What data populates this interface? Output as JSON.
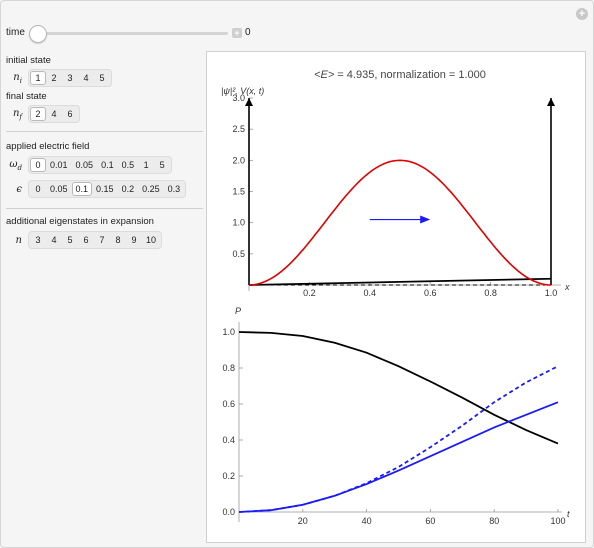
{
  "controls": {
    "time": {
      "label": "time",
      "value": "0"
    },
    "initial_state": {
      "title": "initial state",
      "symbol": "n",
      "subscript": "i",
      "options": [
        "1",
        "2",
        "3",
        "4",
        "5"
      ],
      "selected": "1"
    },
    "final_state": {
      "title": "final state",
      "symbol": "n",
      "subscript": "f",
      "options": [
        "2",
        "4",
        "6"
      ],
      "selected": "2"
    },
    "applied_field": {
      "title": "applied electric field",
      "omega": {
        "symbol": "ω",
        "subscript": "d",
        "options": [
          "0",
          "0.01",
          "0.05",
          "0.1",
          "0.5",
          "1",
          "5"
        ],
        "selected": "0"
      },
      "epsilon": {
        "symbol": "ϵ",
        "options": [
          "0",
          "0.05",
          "0.1",
          "0.15",
          "0.2",
          "0.25",
          "0.3"
        ],
        "selected": "0.1"
      }
    },
    "eigenstates": {
      "title": "additional eigenstates in expansion",
      "symbol": "n",
      "options": [
        "3",
        "4",
        "5",
        "6",
        "7",
        "8",
        "9",
        "10"
      ],
      "selected": ""
    }
  },
  "top_plot": {
    "header": "<E> = 4.935, normalization = 1.000",
    "header_parts": {
      "E": "<E>",
      "rest": " = 4.935, normalization = 1.000"
    },
    "ylabel": "|ψ|², V(x, t)",
    "xlabel": "x",
    "yticks": [
      "0.5",
      "1.0",
      "1.5",
      "2.0",
      "2.5",
      "3.0"
    ],
    "xticks": [
      "0.2",
      "0.4",
      "0.6",
      "0.8",
      "1.0"
    ],
    "colors": {
      "psi": "#e00000",
      "potential": "#000000",
      "arrow": "#1a1aff"
    }
  },
  "bottom_plot": {
    "ylabel": "P",
    "xlabel": "t",
    "yticks": [
      "0.0",
      "0.2",
      "0.4",
      "0.6",
      "0.8",
      "1.0"
    ],
    "xticks": [
      "20",
      "40",
      "60",
      "80",
      "100"
    ],
    "colors": {
      "p_initial": "#000000",
      "p_final": "#1a1aff"
    }
  },
  "chart_data": [
    {
      "type": "line",
      "title": "<E> = 4.935, normalization = 1.000",
      "xlabel": "x",
      "ylabel": "|ψ|², V(x, t)",
      "xlim": [
        0,
        1
      ],
      "ylim": [
        0,
        3
      ],
      "series": [
        {
          "values": [
            [
              0,
              0
            ],
            [
              0.05,
              0.05
            ],
            [
              0.1,
              0.19
            ],
            [
              0.15,
              0.41
            ],
            [
              0.2,
              0.69
            ],
            [
              0.25,
              1.0
            ],
            [
              0.3,
              1.31
            ],
            [
              0.35,
              1.59
            ],
            [
              0.4,
              1.81
            ],
            [
              0.45,
              1.95
            ],
            [
              0.5,
              2.0
            ],
            [
              0.55,
              1.95
            ],
            [
              0.6,
              1.81
            ],
            [
              0.65,
              1.59
            ],
            [
              0.7,
              1.31
            ],
            [
              0.75,
              1.0
            ],
            [
              0.8,
              0.69
            ],
            [
              0.85,
              0.41
            ],
            [
              0.9,
              0.19
            ],
            [
              0.95,
              0.05
            ],
            [
              1.0,
              0
            ]
          ]
        },
        {
          "values": [
            [
              0,
              0
            ],
            [
              1.0,
              0.1
            ]
          ]
        }
      ]
    },
    {
      "type": "line",
      "xlabel": "t",
      "ylabel": "P",
      "xlim": [
        0,
        100
      ],
      "ylim": [
        0,
        1
      ],
      "series": [
        {
          "values": [
            [
              0,
              1.0
            ],
            [
              10,
              0.995
            ],
            [
              20,
              0.978
            ],
            [
              30,
              0.94
            ],
            [
              40,
              0.885
            ],
            [
              50,
              0.81
            ],
            [
              60,
              0.725
            ],
            [
              70,
              0.635
            ],
            [
              80,
              0.54
            ],
            [
              90,
              0.455
            ],
            [
              100,
              0.38
            ]
          ]
        },
        {
          "values": [
            [
              0,
              0
            ],
            [
              10,
              0.01
            ],
            [
              20,
              0.04
            ],
            [
              30,
              0.09
            ],
            [
              40,
              0.155
            ],
            [
              50,
              0.23
            ],
            [
              60,
              0.31
            ],
            [
              70,
              0.39
            ],
            [
              80,
              0.47
            ],
            [
              90,
              0.54
            ],
            [
              100,
              0.61
            ]
          ]
        },
        {
          "values": [
            [
              0,
              0
            ],
            [
              10,
              0.01
            ],
            [
              20,
              0.04
            ],
            [
              30,
              0.09
            ],
            [
              40,
              0.16
            ],
            [
              50,
              0.25
            ],
            [
              60,
              0.36
            ],
            [
              70,
              0.48
            ],
            [
              80,
              0.61
            ],
            [
              90,
              0.72
            ],
            [
              100,
              0.81
            ]
          ]
        }
      ]
    }
  ]
}
